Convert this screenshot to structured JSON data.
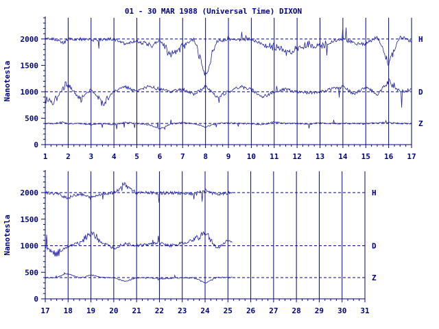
{
  "title": "01 - 30 MAR 1988 (Universal Time) DIXON",
  "colors": {
    "ink": "#000080",
    "trace": "#1a1aa6",
    "background": "#ffffff"
  },
  "chart_data": [
    {
      "type": "line",
      "panel": "top",
      "ylabel": "Nanotesla",
      "ylim": [
        0,
        2400
      ],
      "yticks": [
        0,
        500,
        1000,
        1500,
        2000
      ],
      "xlim": [
        1,
        17
      ],
      "xticks": [
        1,
        2,
        3,
        4,
        5,
        6,
        7,
        8,
        9,
        10,
        11,
        12,
        13,
        14,
        15,
        16,
        17
      ],
      "baselines": [
        2000,
        1000,
        400
      ],
      "grid": "vertical lines at each day",
      "data_until": 17,
      "series": [
        {
          "name": "H",
          "baseline": 2000,
          "x": [
            1,
            1.4,
            1.8,
            2,
            2.5,
            3,
            3.5,
            4,
            4.5,
            5,
            5.5,
            6,
            6.5,
            7,
            7.5,
            8,
            8.5,
            9,
            9.5,
            10,
            10.5,
            11,
            11.5,
            12,
            12.5,
            13,
            13.5,
            14,
            14.5,
            15,
            15.5,
            16,
            16.5,
            17
          ],
          "values": [
            2000,
            2000,
            1920,
            2000,
            2000,
            1980,
            1990,
            2000,
            1900,
            1960,
            1850,
            1980,
            1700,
            1850,
            2000,
            1300,
            1950,
            2000,
            1980,
            2000,
            1900,
            1850,
            1750,
            1800,
            1900,
            1850,
            1950,
            2000,
            1920,
            1900,
            2050,
            1550,
            2050,
            1950
          ]
        },
        {
          "name": "D",
          "baseline": 1000,
          "x": [
            1,
            1.4,
            1.8,
            2,
            2.5,
            3,
            3.5,
            4,
            4.5,
            5,
            5.5,
            6,
            6.5,
            7,
            7.5,
            8,
            8.5,
            9,
            9.5,
            10,
            10.5,
            11,
            11.5,
            12,
            12.5,
            13,
            13.5,
            14,
            14.5,
            15,
            15.5,
            16,
            16.5,
            17
          ],
          "values": [
            850,
            820,
            1100,
            1150,
            850,
            1050,
            780,
            1000,
            1100,
            1000,
            1100,
            1050,
            1000,
            1050,
            950,
            1100,
            900,
            1000,
            1100,
            1050,
            900,
            1000,
            1050,
            1000,
            980,
            1000,
            1050,
            1100,
            950,
            1100,
            950,
            1200,
            1000,
            1050
          ]
        },
        {
          "name": "Z",
          "baseline": 400,
          "x": [
            1,
            1.4,
            1.8,
            2,
            2.5,
            3,
            3.5,
            4,
            4.5,
            5,
            5.5,
            6,
            6.5,
            7,
            7.5,
            8,
            8.5,
            9,
            9.5,
            10,
            10.5,
            11,
            11.5,
            12,
            12.5,
            13,
            13.5,
            14,
            14.5,
            15,
            15.5,
            16,
            16.5,
            17
          ],
          "values": [
            400,
            400,
            430,
            390,
            400,
            380,
            400,
            380,
            420,
            400,
            380,
            300,
            390,
            420,
            400,
            330,
            400,
            410,
            400,
            395,
            380,
            430,
            400,
            400,
            390,
            410,
            400,
            400,
            400,
            395,
            410,
            420,
            400,
            400
          ]
        }
      ]
    },
    {
      "type": "line",
      "panel": "bottom",
      "ylabel": "Nanotesla",
      "ylim": [
        0,
        2400
      ],
      "yticks": [
        0,
        500,
        1000,
        1500,
        2000
      ],
      "xlim": [
        17,
        31
      ],
      "xticks": [
        17,
        18,
        19,
        20,
        21,
        22,
        23,
        24,
        25,
        26,
        27,
        28,
        29,
        30,
        31
      ],
      "baselines": [
        2000,
        1000,
        400
      ],
      "grid": "vertical lines at each day",
      "data_until": 25.2,
      "series": [
        {
          "name": "H",
          "baseline": 2000,
          "x": [
            17,
            17.5,
            18,
            18.5,
            19,
            19.5,
            20,
            20.5,
            21,
            21.5,
            22,
            22.5,
            23,
            23.5,
            24,
            24.5,
            25,
            25.2
          ],
          "values": [
            2000,
            1980,
            1900,
            1980,
            1900,
            1990,
            1990,
            2150,
            1990,
            2000,
            1990,
            1995,
            1990,
            1980,
            2050,
            1960,
            1990,
            2000
          ]
        },
        {
          "name": "D",
          "baseline": 1000,
          "x": [
            17,
            17.5,
            18,
            18.5,
            19,
            19.5,
            20,
            20.5,
            21,
            21.5,
            22,
            22.5,
            23,
            23.5,
            24,
            24.5,
            25,
            25.2
          ],
          "values": [
            950,
            850,
            1000,
            1050,
            1250,
            1050,
            950,
            1050,
            1000,
            1020,
            1050,
            1000,
            1050,
            1100,
            1250,
            950,
            1100,
            1050
          ]
        },
        {
          "name": "Z",
          "baseline": 400,
          "x": [
            17,
            17.5,
            18,
            18.5,
            19,
            19.5,
            20,
            20.5,
            21,
            21.5,
            22,
            22.5,
            23,
            23.5,
            24,
            24.5,
            25,
            25.2
          ],
          "values": [
            400,
            400,
            480,
            390,
            450,
            400,
            395,
            330,
            395,
            400,
            380,
            390,
            400,
            395,
            300,
            400,
            400,
            400
          ]
        }
      ]
    }
  ]
}
